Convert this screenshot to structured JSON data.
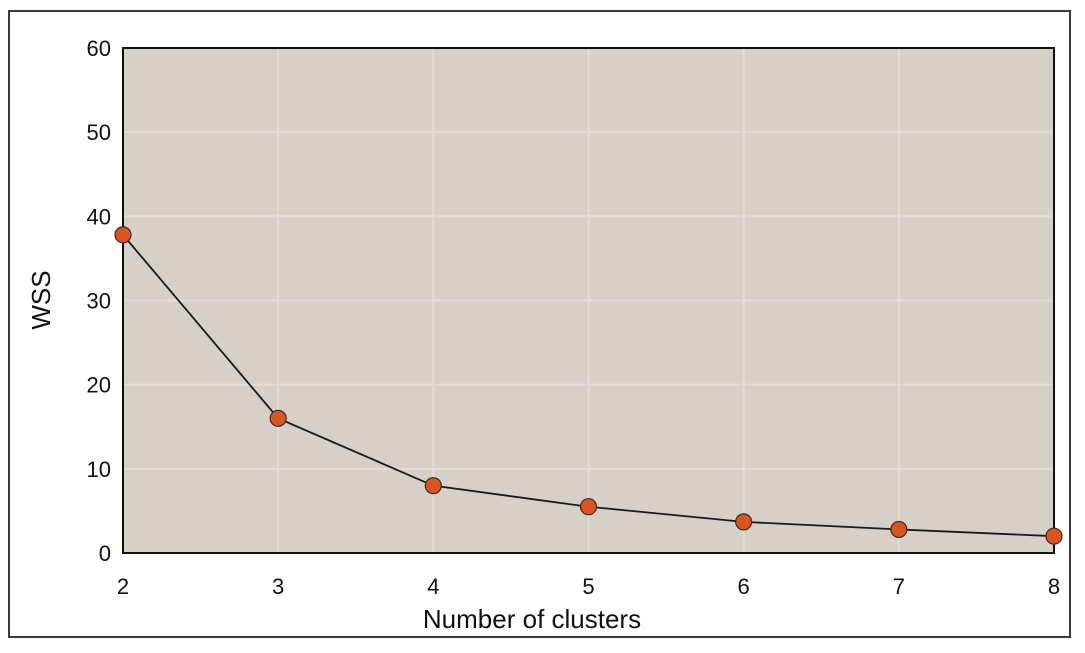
{
  "chart_data": {
    "type": "line",
    "title": "",
    "xlabel": "Number of clusters",
    "ylabel": "WSS",
    "x": [
      2,
      3,
      4,
      5,
      6,
      7,
      8
    ],
    "series": [
      {
        "values": [
          37.8,
          16.0,
          8.0,
          5.5,
          3.7,
          2.8,
          2.0
        ]
      }
    ],
    "xlim": [
      2,
      8
    ],
    "ylim": [
      0,
      60
    ],
    "xticks": [
      2,
      3,
      4,
      5,
      6,
      7,
      8
    ],
    "yticks": [
      0,
      10,
      20,
      30,
      40,
      50,
      60
    ],
    "grid": true,
    "colors": {
      "plot_background": "#d5d0c8",
      "grid": "#e2ded7",
      "line": "#1a1a1a",
      "marker_fill": "#d9541e",
      "marker_edge": "#3a2a20"
    }
  }
}
